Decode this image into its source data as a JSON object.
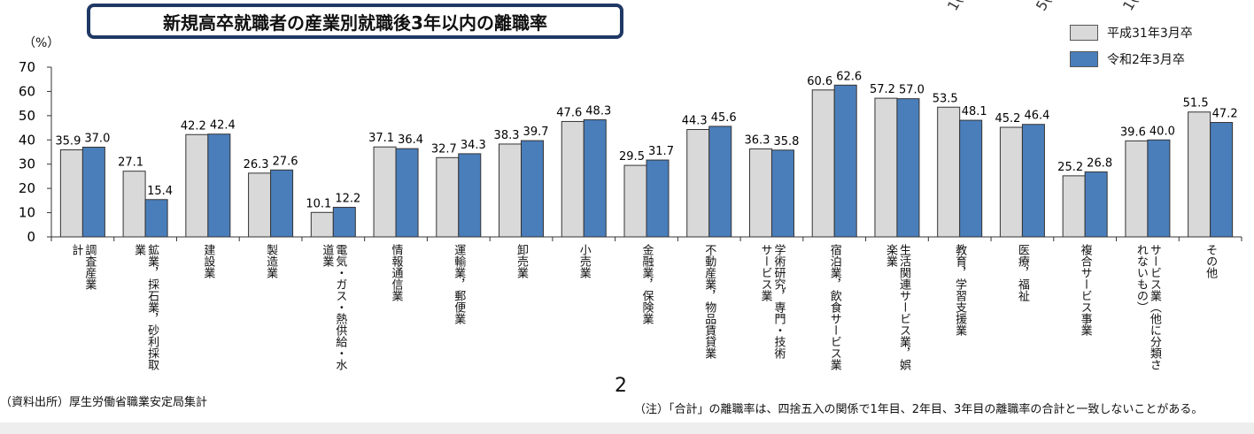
{
  "chart_data": {
    "type": "bar",
    "title": "新規高卒就職者の産業別就職後3年以内の離職率",
    "ylabel": "（%）",
    "ylim": [
      0,
      70
    ],
    "yticks": [
      0,
      10,
      20,
      30,
      40,
      50,
      60,
      70
    ],
    "legend_position": "top-right",
    "categories": [
      "調査産業計",
      "鉱業，採石業，砂利採取業",
      "建設業",
      "製造業",
      "電気・ガス・熱供給・水道業",
      "情報通信業",
      "運輸業，郵便業",
      "卸売業",
      "小売業",
      "金融業，保険業",
      "不動産業，物品賃貸業",
      "学術研究，専門・技術サービス業",
      "宿泊業，飲食サービス業",
      "生活関連サービス業，娯楽業",
      "教育，学習支援業",
      "医療，福祉",
      "複合サービス事業",
      "サービス業（他に分類されないもの）",
      "その他"
    ],
    "category_lines": [
      [
        "調査産業",
        "計"
      ],
      [
        "鉱業，採石業，砂利採取",
        "業"
      ],
      [
        "建設業"
      ],
      [
        "製造業"
      ],
      [
        "電気・ガス・熱供給・水",
        "道業"
      ],
      [
        "情報通信業"
      ],
      [
        "運輸業，郵便業"
      ],
      [
        "卸売業"
      ],
      [
        "小売業"
      ],
      [
        "金融業，保険業"
      ],
      [
        "不動産業，物品賃貸業"
      ],
      [
        "学術研究，専門・技術",
        "サービス業"
      ],
      [
        "宿泊業，飲食サービス業"
      ],
      [
        "生活関連サービス業，娯",
        "楽業"
      ],
      [
        "教育，学習支援業"
      ],
      [
        "医療，福祉"
      ],
      [
        "複合サービス事業"
      ],
      [
        "サービス業（他に分類さ",
        "れないもの）"
      ],
      [
        "その他"
      ]
    ],
    "series": [
      {
        "name": "平成31年3月卒",
        "color": "#d9d9d9",
        "values": [
          35.9,
          27.1,
          42.2,
          26.3,
          10.1,
          37.1,
          32.7,
          38.3,
          47.6,
          29.5,
          44.3,
          36.3,
          60.6,
          57.2,
          53.5,
          45.2,
          25.2,
          39.6,
          51.5
        ]
      },
      {
        "name": "令和2年3月卒",
        "color": "#4a7ebb",
        "values": [
          37.0,
          15.4,
          42.4,
          27.6,
          12.2,
          36.4,
          34.3,
          39.7,
          48.3,
          31.7,
          45.6,
          35.8,
          62.6,
          57.0,
          48.1,
          46.4,
          26.8,
          40.0,
          47.2
        ]
      }
    ]
  },
  "source": "（資料出所）厚生労働省職業安定局集計",
  "note": "（注）「合計」の離職率は、四捨五入の関係で1年目、2年目、3年目の離職率の合計と一致しないことがある。",
  "page_number": "2",
  "top_fragments": [
    "1(",
    "5(",
    "1("
  ]
}
